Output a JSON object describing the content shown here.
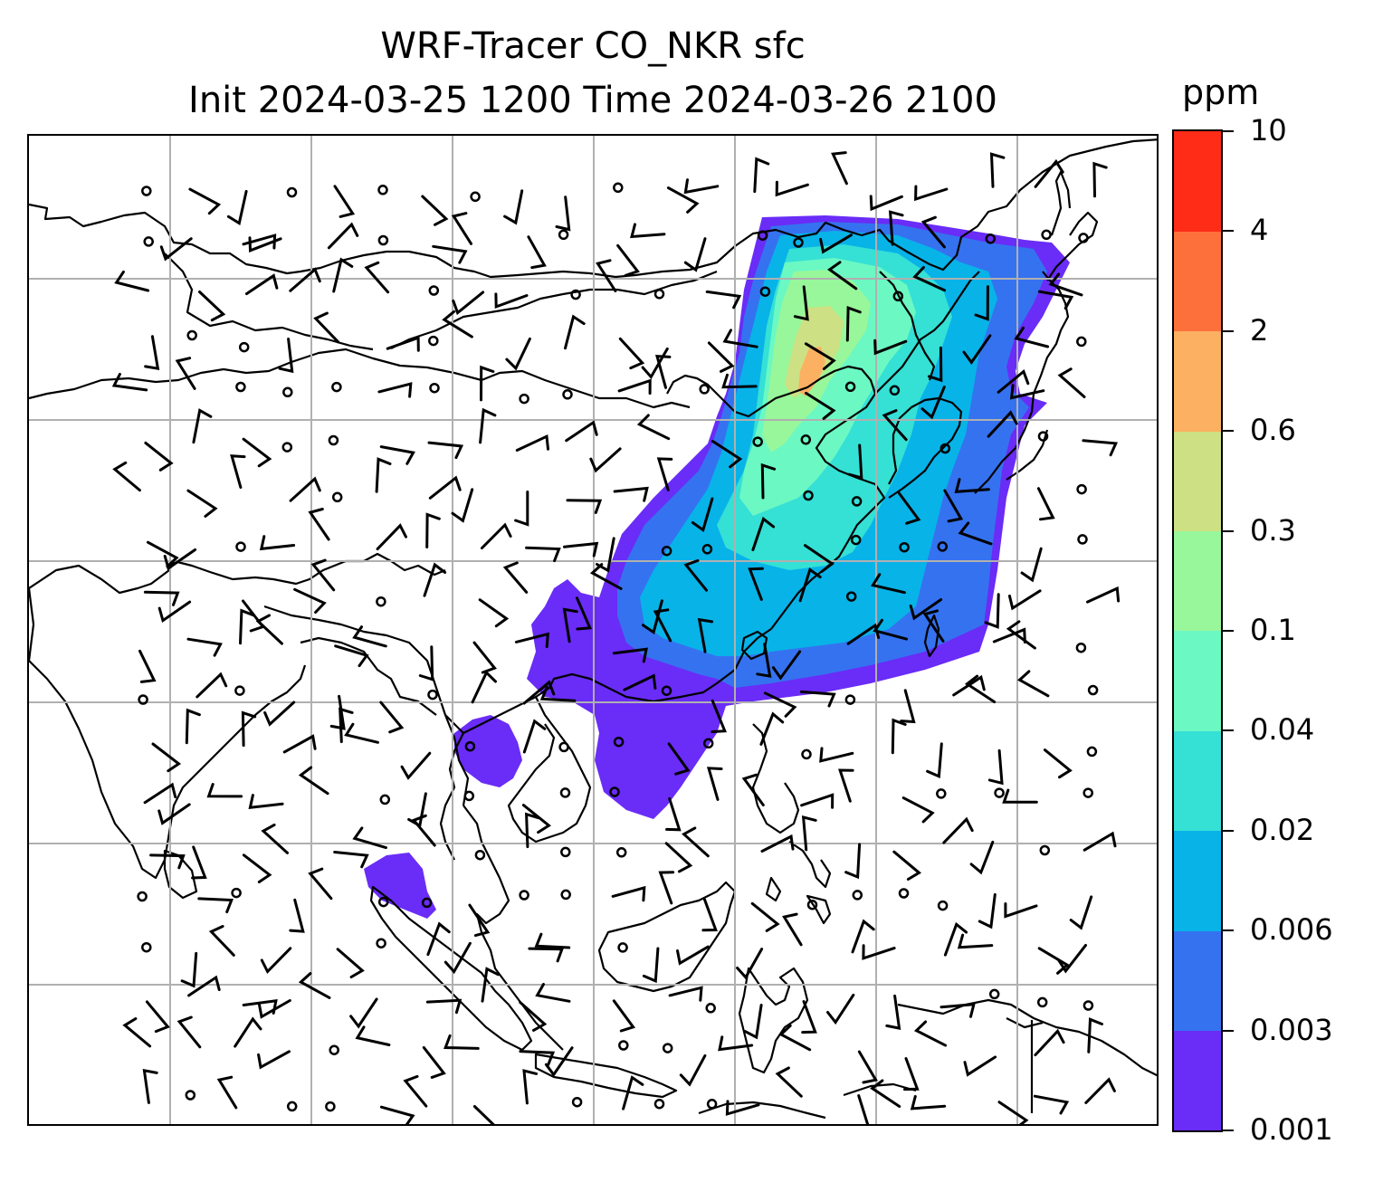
{
  "title": {
    "line1": "WRF-Tracer CO_NKR sfc",
    "line2": "Init 2024-03-25 1200 Time 2024-03-26 2100"
  },
  "colorbar": {
    "unit": "ppm",
    "levels": [
      "0.001",
      "0.003",
      "0.006",
      "0.02",
      "0.04",
      "0.1",
      "0.3",
      "0.6",
      "2",
      "4",
      "10"
    ],
    "colors": [
      "#6a2cf7",
      "#3572f0",
      "#08b3e8",
      "#35e0d5",
      "#6bf8c3",
      "#98f79a",
      "#cde083",
      "#fcb062",
      "#fe703b",
      "#ff2c17"
    ]
  },
  "map": {
    "gridline_color": "#b0b0b0",
    "coastline_color": "#000000",
    "plume_description_levels": [
      "0.001",
      "0.003",
      "0.006",
      "0.02",
      "0.04",
      "0.1",
      "0.3",
      "0.6"
    ]
  }
}
